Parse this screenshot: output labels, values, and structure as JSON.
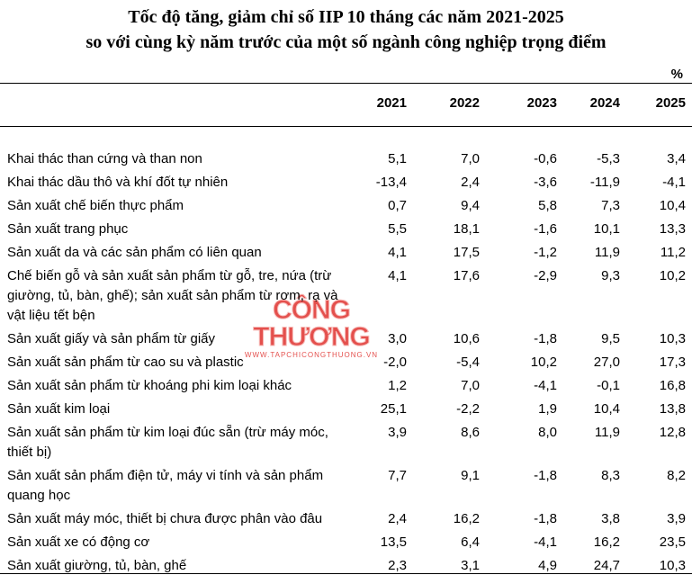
{
  "header": {
    "title": [
      "Tốc độ tăng, giảm chỉ số IIP 10 tháng các năm 2021-2025",
      "so với cùng kỳ năm trước của một số ngành công nghiệp trọng điểm"
    ],
    "unit": "%"
  },
  "table": {
    "columns": [
      "2021",
      "2022",
      "2023",
      "2024",
      "2025"
    ],
    "rows": [
      [
        "Khai thác than cứng và than non",
        "5,1",
        "7,0",
        "-0,6",
        "-5,3",
        "3,4"
      ],
      [
        "Khai thác dầu thô và khí đốt tự nhiên",
        "-13,4",
        "2,4",
        "-3,6",
        "-11,9",
        "-4,1"
      ],
      [
        "Sản xuất chế biến thực phẩm",
        "0,7",
        "9,4",
        "5,8",
        "7,3",
        "10,4"
      ],
      [
        "Sản xuất trang phục",
        "5,5",
        "18,1",
        "-1,6",
        "10,1",
        "13,3"
      ],
      [
        "Sản xuất da và các sản phẩm có liên quan",
        "4,1",
        "17,5",
        "-1,2",
        "11,9",
        "11,2"
      ],
      [
        "Chế biến gỗ và sản xuất sản phẩm từ gỗ, tre, nứa (trừ giường, tủ, bàn, ghế); sản xuất sản phẩm từ rơm, rạ và vật liệu tết bện",
        "4,1",
        "17,6",
        "-2,9",
        "9,3",
        "10,2"
      ],
      [
        "Sản xuất giấy và sản phẩm từ giấy",
        "3,0",
        "10,6",
        "-1,8",
        "9,5",
        "10,3"
      ],
      [
        "Sản xuất sản phẩm từ cao su và plastic",
        "-2,0",
        "-5,4",
        "10,2",
        "27,0",
        "17,3"
      ],
      [
        "Sản xuất sản phẩm từ khoáng phi kim loại khác",
        "1,2",
        "7,0",
        "-4,1",
        "-0,1",
        "16,8"
      ],
      [
        "Sản xuất kim loại",
        "25,1",
        "-2,2",
        "1,9",
        "10,4",
        "13,8"
      ],
      [
        "Sản xuất sản phẩm từ kim loại đúc sẵn (trừ máy móc, thiết bị)",
        "3,9",
        "8,6",
        "8,0",
        "11,9",
        "12,8"
      ],
      [
        "Sản xuất sản phẩm điện tử, máy vi tính và sản phẩm quang học",
        "7,7",
        "9,1",
        "-1,8",
        "8,3",
        "8,2"
      ],
      [
        "Sản xuất máy móc, thiết bị chưa được phân vào đâu",
        "2,4",
        "16,2",
        "-1,8",
        "3,8",
        "3,9"
      ],
      [
        "Sản xuất xe có động cơ",
        "13,5",
        "6,4",
        "-4,1",
        "16,2",
        "23,5"
      ],
      [
        "Sản xuất giường, tủ, bàn, ghế",
        "2,3",
        "3,1",
        "4,9",
        "24,7",
        "10,3"
      ]
    ]
  },
  "watermark": {
    "brand": "CÔNG THƯƠNG",
    "url": "WWW.TAPCHICONGTHUONG.VN"
  }
}
